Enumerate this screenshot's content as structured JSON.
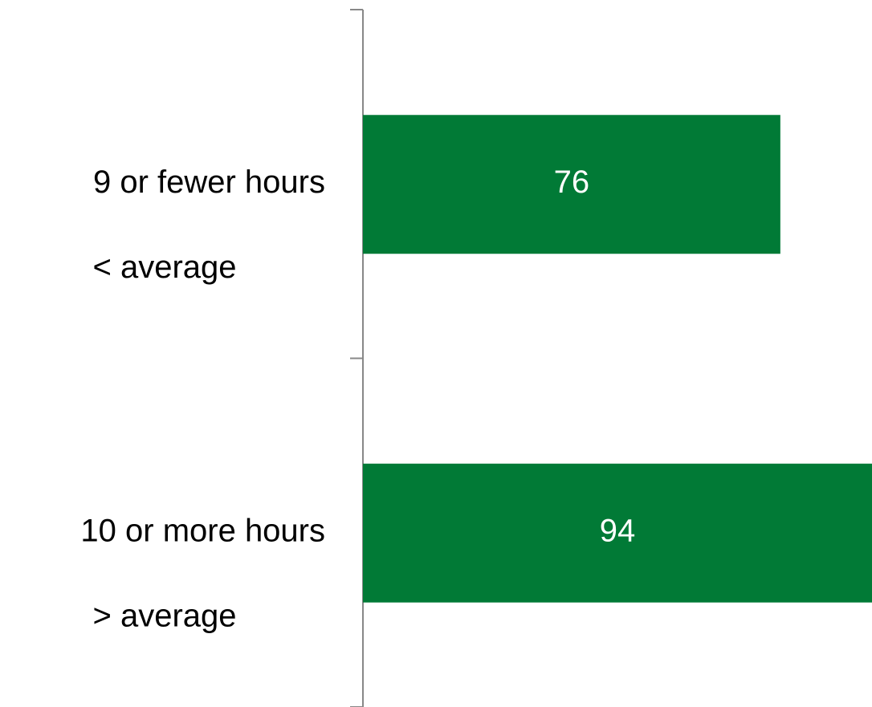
{
  "chart_data": {
    "type": "hbar",
    "categories": [
      "9 or fewer hours",
      "10 or more hours"
    ],
    "sublabels": [
      "< average",
      "> average"
    ],
    "values": [
      76,
      94
    ],
    "color": "#017a36"
  }
}
